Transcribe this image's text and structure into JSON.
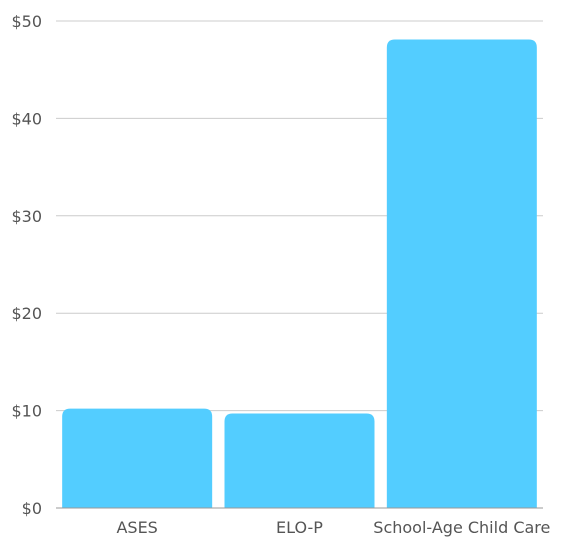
{
  "chart_data": {
    "type": "bar",
    "categories": [
      "ASES",
      "ELO-P",
      "School-Age Child Care"
    ],
    "values": [
      10.2,
      9.7,
      48.1
    ],
    "ylim": [
      0,
      50
    ],
    "y_ticks": [
      0,
      10,
      20,
      30,
      40,
      50
    ],
    "y_tick_labels": [
      "$0",
      "$10",
      "$20",
      "$30",
      "$40",
      "$50"
    ],
    "grid": true,
    "legend": "none",
    "bar_color": "#53CDFF"
  }
}
